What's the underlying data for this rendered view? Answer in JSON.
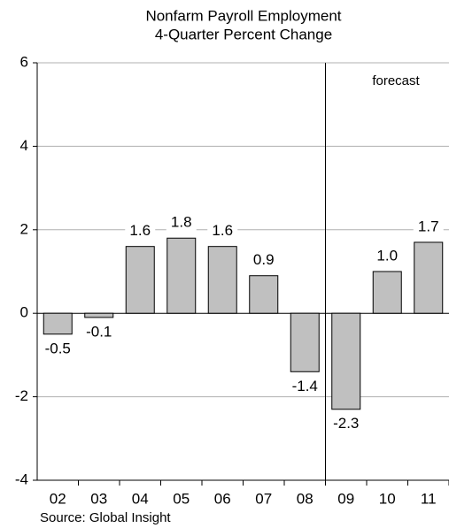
{
  "chart_data": {
    "type": "bar",
    "title": [
      "Nonfarm Payroll Employment",
      "4-Quarter Percent Change"
    ],
    "categories": [
      "02",
      "03",
      "04",
      "05",
      "06",
      "07",
      "08",
      "09",
      "10",
      "11"
    ],
    "values": [
      -0.5,
      -0.1,
      1.6,
      1.8,
      1.6,
      0.9,
      -1.4,
      -2.3,
      1.0,
      1.7
    ],
    "value_labels": [
      "-0.5",
      "-0.1",
      "1.6",
      "1.8",
      "1.6",
      "0.9",
      "-1.4",
      "-2.3",
      "1.0",
      "1.7"
    ],
    "color": "#c0c0c0",
    "ylim": [
      -4,
      6
    ],
    "yticks": [
      -4,
      -2,
      0,
      2,
      4,
      6
    ],
    "grid": true,
    "annotation": "forecast",
    "source": "Source: Global Insight"
  }
}
